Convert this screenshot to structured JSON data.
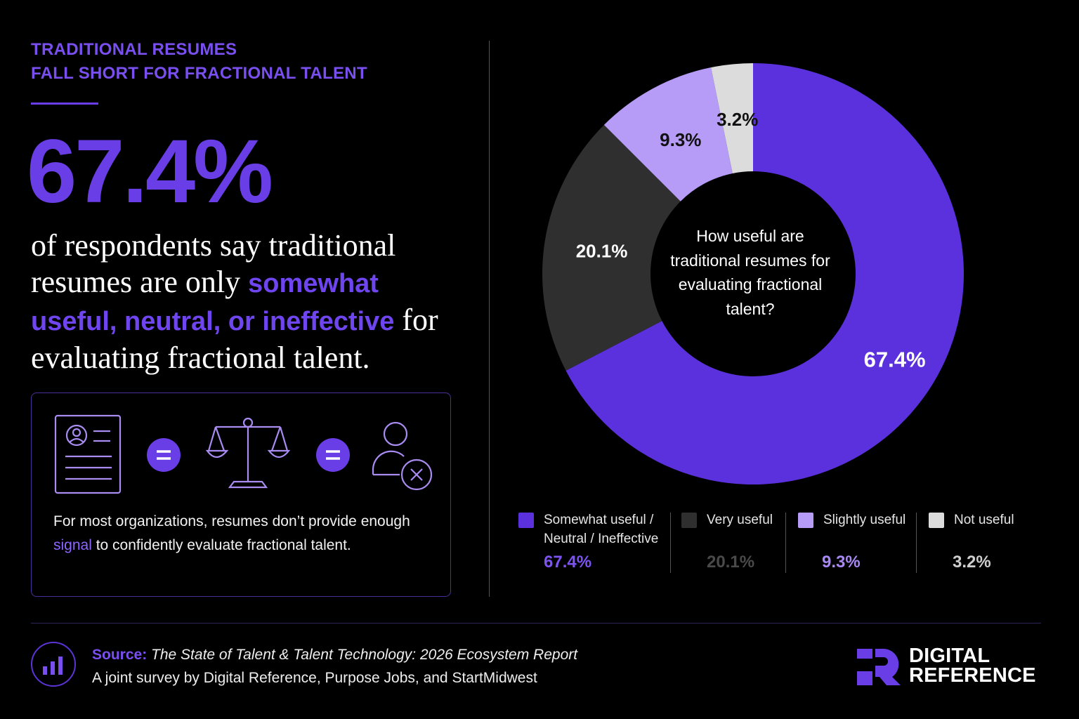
{
  "header": {
    "eyebrow_line1": "TRADITIONAL RESUMES",
    "eyebrow_line2": "FALL SHORT FOR FRACTIONAL TALENT",
    "hero_stat": "67.4%",
    "statement_pre": "of respondents say traditional resumes are only ",
    "statement_highlight": "somewhat useful, neutral, or ineffective",
    "statement_post": " for evaluating fractional talent."
  },
  "card": {
    "icons": [
      "resume-icon",
      "equals-icon",
      "scales-icon",
      "equals-icon",
      "user-x-icon"
    ],
    "equals_symbol": "=",
    "note_pre": "For most organizations, resumes don’t provide enough ",
    "note_highlight": "signal",
    "note_post": " to confidently evaluate fractional talent."
  },
  "chart_data": {
    "type": "pie",
    "title": "How useful are traditional resumes for evaluating fractional talent?",
    "donut": true,
    "series": [
      {
        "name": "Somewhat useful / Neutral / Ineffective",
        "value": 67.4,
        "label": "67.4%",
        "color": "#5b31dd",
        "label_color": "#ffffff",
        "value_color": "#7d54f3"
      },
      {
        "name": "Very useful",
        "value": 20.1,
        "label": "20.1%",
        "color": "#2f2f2f",
        "label_color": "#ffffff",
        "value_color": "#4a4a4a"
      },
      {
        "name": "Slightly useful",
        "value": 9.3,
        "label": "9.3%",
        "color": "#b69cf6",
        "label_color": "#111111",
        "value_color": "#a888f5"
      },
      {
        "name": "Not useful",
        "value": 3.2,
        "label": "3.2%",
        "color": "#dcdcdc",
        "label_color": "#111111",
        "value_color": "#cfcfcf"
      }
    ],
    "legend_position": "bottom"
  },
  "footer": {
    "source_label": "Source:",
    "source_title": "The State of Talent & Talent Technology: 2026 Ecosystem Report",
    "source_note": "A joint survey by Digital Reference, Purpose Jobs, and StartMidwest",
    "brand_line1": "DIGITAL",
    "brand_line2": "REFERENCE"
  },
  "colors": {
    "accent": "#6a3ee6",
    "background": "#000000"
  }
}
